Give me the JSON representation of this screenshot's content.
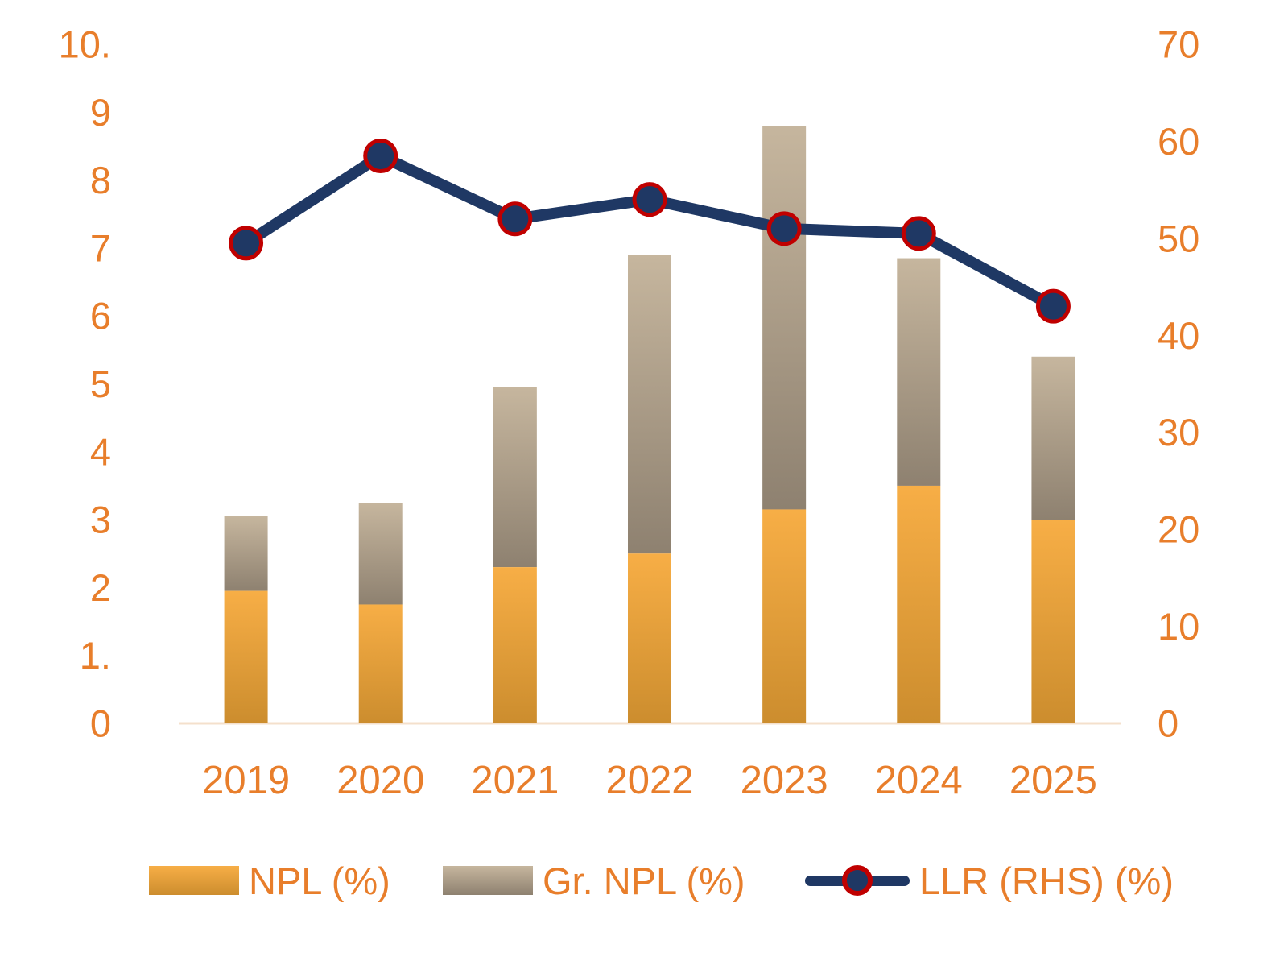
{
  "chart_data": {
    "type": "combo-stacked-bar-line",
    "categories": [
      "2019",
      "2020",
      "2021",
      "2022",
      "2023",
      "2024",
      "2025"
    ],
    "series": [
      {
        "name": "NPL (%)",
        "type": "bar",
        "axis": "left",
        "stack": "bottom",
        "values": [
          1.95,
          1.75,
          2.3,
          2.5,
          3.15,
          3.5,
          3.0
        ]
      },
      {
        "name": "Gr. NPL (%)",
        "type": "bar",
        "axis": "left",
        "stack": "top",
        "values": [
          1.1,
          1.5,
          2.65,
          4.4,
          5.65,
          3.35,
          2.4
        ]
      },
      {
        "name": "LLR (RHS) (%)",
        "type": "line",
        "axis": "right",
        "values": [
          49.5,
          58.5,
          52,
          54,
          51,
          50.5,
          43
        ]
      }
    ],
    "stacked_bar_totals": [
      3.05,
      3.25,
      4.95,
      6.9,
      8.8,
      6.85,
      5.4
    ],
    "left_axis": {
      "min": 0,
      "max": 10,
      "step": 1,
      "ticks": [
        "0",
        "1.",
        "2",
        "3",
        "4",
        "5",
        "6",
        "7",
        "8",
        "9",
        "10."
      ]
    },
    "right_axis": {
      "min": 0,
      "max": 70,
      "step": 10,
      "ticks": [
        "0",
        "10",
        "20",
        "30",
        "40",
        "50",
        "60",
        "70"
      ]
    },
    "title": "",
    "xlabel": "",
    "ylabel": "",
    "grid": false,
    "legend_position": "bottom",
    "colors": {
      "npl_bar_top": "#F7AE46",
      "npl_bar_bottom": "#CC8D2E",
      "gr_npl_bar_top": "#C6B69E",
      "gr_npl_bar_bottom": "#8E8170",
      "llr_line": "#1F3864",
      "marker_fill": "#1F3864",
      "marker_stroke": "#C00000",
      "axis_text": "#E87E2B",
      "baseline": "#F4E0CC"
    },
    "legend": [
      {
        "label": "NPL (%)",
        "swatch": "bar-orange"
      },
      {
        "label": "Gr. NPL (%)",
        "swatch": "bar-tan"
      },
      {
        "label": "LLR (RHS) (%)",
        "swatch": "line-marker"
      }
    ]
  }
}
